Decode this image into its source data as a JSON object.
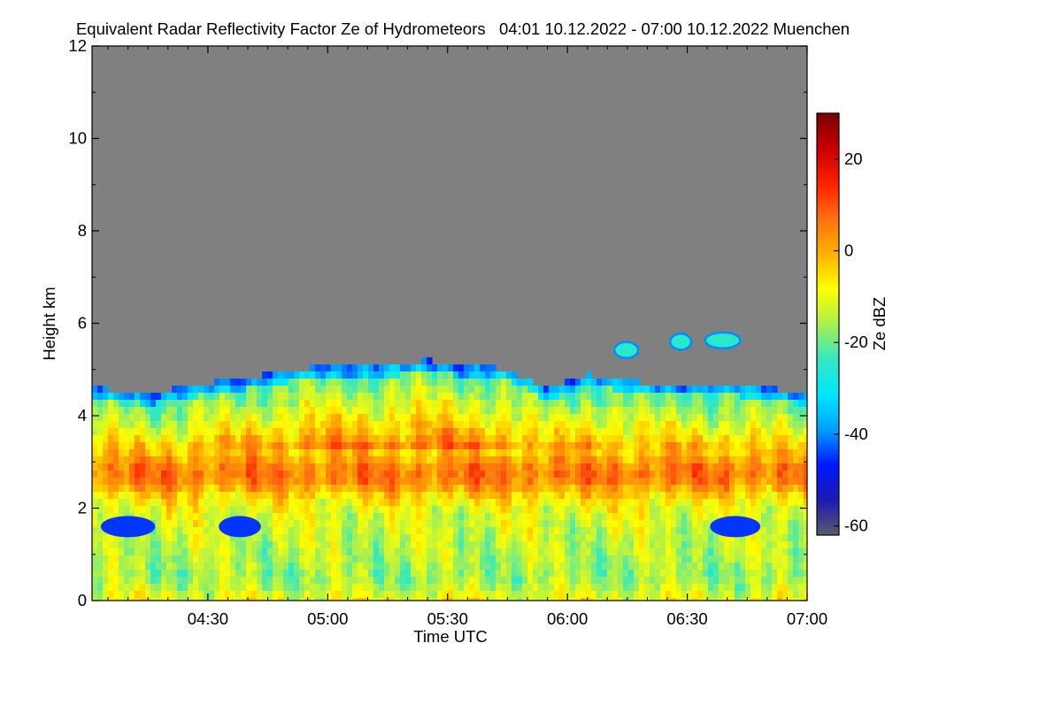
{
  "title": "Equivalent Radar Reflectivity Factor Ze of Hydrometeors   04:01 10.12.2022 - 07:00 10.12.2022 Muenchen",
  "colors": {
    "background": "#ffffff",
    "no_data": "#808080",
    "colormap": [
      "#5a5a6a",
      "#1a1ab4",
      "#0018ff",
      "#00a0ff",
      "#00e6ff",
      "#33e8c0",
      "#a8f050",
      "#ffff00",
      "#ffb000",
      "#ff7010",
      "#ff2000",
      "#c80000",
      "#7a0000"
    ]
  },
  "chart_data": {
    "type": "heatmap",
    "title": "Equivalent Radar Reflectivity Factor Ze of Hydrometeors   04:01 10.12.2022 - 07:00 10.12.2022 Muenchen",
    "xlabel": "Time UTC",
    "ylabel": "Height km",
    "x_range": [
      "04:01",
      "07:00"
    ],
    "xticks": [
      "04:30",
      "05:00",
      "05:30",
      "06:00",
      "06:30",
      "07:00"
    ],
    "y_range": [
      0,
      12
    ],
    "yticks": [
      "0",
      "2",
      "4",
      "6",
      "8",
      "10",
      "12"
    ],
    "colorbar": {
      "label": "Ze dBZ",
      "range": [
        -62,
        30
      ],
      "ticks": [
        "-60",
        "-40",
        "-20",
        "0",
        "20"
      ]
    },
    "echo_top_km": [
      {
        "time": "04:01",
        "top": 4.6
      },
      {
        "time": "04:15",
        "top": 4.5
      },
      {
        "time": "04:30",
        "top": 4.7
      },
      {
        "time": "04:45",
        "top": 4.9
      },
      {
        "time": "05:00",
        "top": 5.1
      },
      {
        "time": "05:15",
        "top": 5.1
      },
      {
        "time": "05:25",
        "top": 5.2
      },
      {
        "time": "05:45",
        "top": 5.0
      },
      {
        "time": "05:55",
        "top": 4.6
      },
      {
        "time": "06:05",
        "top": 4.9
      },
      {
        "time": "06:20",
        "top": 4.7
      },
      {
        "time": "06:40",
        "top": 4.7
      },
      {
        "time": "07:00",
        "top": 4.5
      }
    ],
    "features": [
      {
        "name": "bright band",
        "level_km": [
          2.2,
          3.2
        ],
        "ze_dbz": 10
      },
      {
        "name": "precipitation fall streaks",
        "ze_dbz": [
          -5,
          15
        ]
      },
      {
        "name": "elevated cloud patches",
        "time": [
          "06:10",
          "06:45"
        ],
        "height_km": [
          5.3,
          5.9
        ],
        "ze_dbz": [
          -40,
          -25
        ]
      },
      {
        "name": "low reflectivity pockets",
        "height_km": [
          1.2,
          2.0
        ],
        "ze_dbz": -45
      }
    ]
  }
}
